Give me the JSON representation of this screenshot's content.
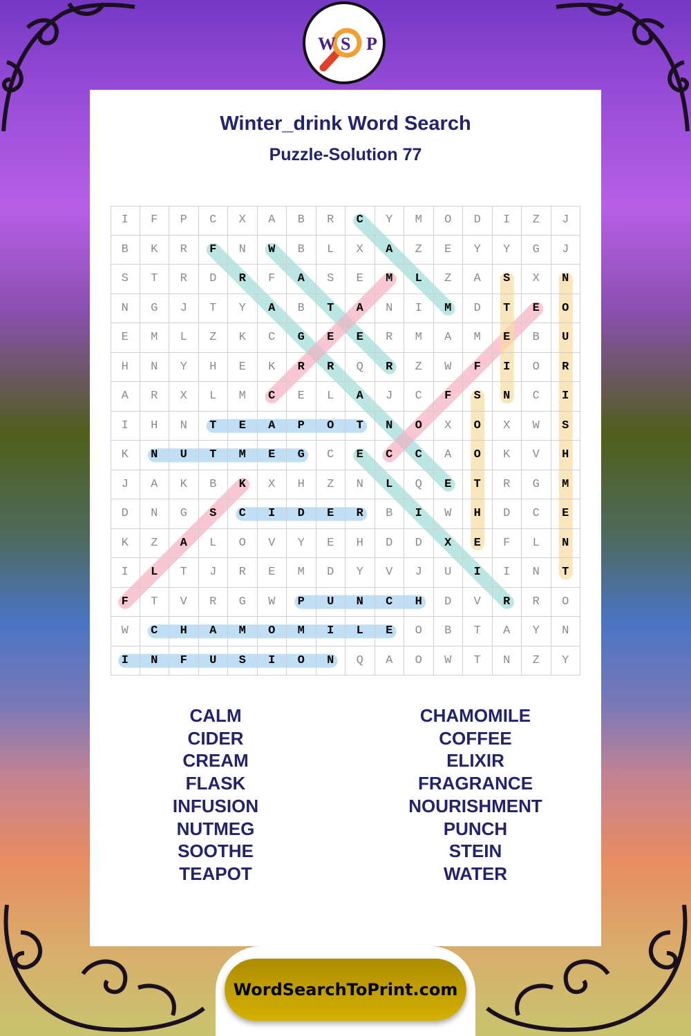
{
  "logo": {
    "letters": [
      "W",
      "S",
      "P"
    ]
  },
  "header": {
    "title": "Winter_drink Word Search",
    "subtitle": "Puzzle-Solution 77"
  },
  "grid": {
    "rows": [
      "IFPCXABRCYMODIZJ",
      "BKRFNWBLXAZEYYGJ",
      "STRDRFASEMLZASXN",
      "NGJTYABTANIMDTEO",
      "EMLZKCGEERMAMEBU",
      "HNYHEKRRQRZWFIOR",
      "ARXLMCELAJCFSNCI",
      "IHNTEAPOTNOXOXWS",
      "KNUTMEGCECCAOKVH",
      "JAKBKXHZNLQETRGM",
      "DNGSCIDERBIWHDCE",
      "KZALOVYEHDDXEFLN",
      "ILTJREMDYVJUIINT",
      "FTVRGWPUNCHDVRRO",
      "WCHAMOMILEOBTAYN",
      "INFUSIONQAOWTNZY"
    ],
    "solutions": [
      {
        "word": "CALM",
        "start": [
          0,
          8
        ],
        "end": [
          3,
          11
        ],
        "color": "#9fdcd8"
      },
      {
        "word": "FRAGRANCE",
        "start": [
          1,
          3
        ],
        "end": [
          9,
          11
        ],
        "color": "#9fdcd8"
      },
      {
        "word": "WATER",
        "start": [
          1,
          5
        ],
        "end": [
          5,
          9
        ],
        "color": "#9fdcd8"
      },
      {
        "word": "ELIXIR",
        "start": [
          8,
          8
        ],
        "end": [
          13,
          13
        ],
        "color": "#9fdcd8"
      },
      {
        "word": "CREAM",
        "start": [
          6,
          5
        ],
        "end": [
          2,
          9
        ],
        "color": "#f7aec2"
      },
      {
        "word": "COFFEE",
        "start": [
          8,
          9
        ],
        "end": [
          3,
          14
        ],
        "color": "#f7aec2"
      },
      {
        "word": "FLASK",
        "start": [
          13,
          0
        ],
        "end": [
          9,
          4
        ],
        "color": "#f7aec2"
      },
      {
        "word": "STEIN",
        "start": [
          2,
          13
        ],
        "end": [
          6,
          13
        ],
        "color": "#f9dca0"
      },
      {
        "word": "NOURISHMENT",
        "start": [
          2,
          15
        ],
        "end": [
          12,
          15
        ],
        "color": "#f9dca0"
      },
      {
        "word": "SOOTHE",
        "start": [
          6,
          12
        ],
        "end": [
          11,
          12
        ],
        "color": "#f9dca0"
      },
      {
        "word": "TEAPOT",
        "start": [
          7,
          3
        ],
        "end": [
          7,
          8
        ],
        "color": "#a6d2f2"
      },
      {
        "word": "NUTMEG",
        "start": [
          8,
          1
        ],
        "end": [
          8,
          6
        ],
        "color": "#a6d2f2"
      },
      {
        "word": "CIDER",
        "start": [
          10,
          4
        ],
        "end": [
          10,
          8
        ],
        "color": "#a6d2f2"
      },
      {
        "word": "PUNCH",
        "start": [
          13,
          6
        ],
        "end": [
          13,
          10
        ],
        "color": "#a6d2f2"
      },
      {
        "word": "CHAMOMILE",
        "start": [
          14,
          1
        ],
        "end": [
          14,
          9
        ],
        "color": "#a6d2f2"
      },
      {
        "word": "INFUSION",
        "start": [
          15,
          0
        ],
        "end": [
          15,
          7
        ],
        "color": "#a6d2f2"
      }
    ]
  },
  "word_list": {
    "left": [
      "CALM",
      "CIDER",
      "CREAM",
      "FLASK",
      "INFUSION",
      "NUTMEG",
      "SOOTHE",
      "TEAPOT"
    ],
    "right": [
      "CHAMOMILE",
      "COFFEE",
      "ELIXIR",
      "FRAGRANCE",
      "NOURISHMENT",
      "PUNCH",
      "STEIN",
      "WATER"
    ]
  },
  "footer": {
    "site": "WordSearchToPrint.com"
  }
}
